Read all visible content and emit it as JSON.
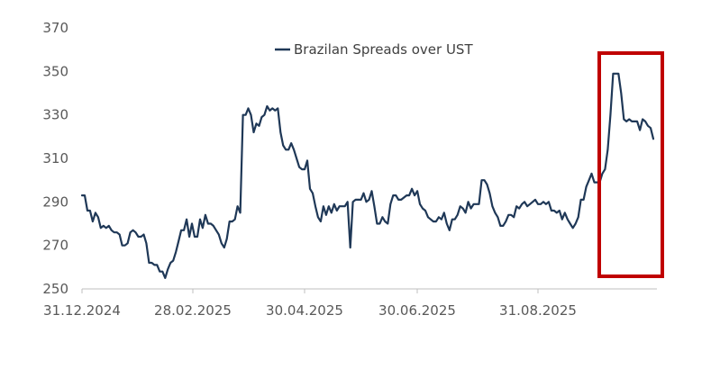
{
  "chart_data": {
    "type": "line",
    "title": "",
    "xlabel": "",
    "ylabel": "",
    "ylim": [
      250,
      370
    ],
    "yticks": [
      250,
      270,
      290,
      310,
      330,
      350,
      370
    ],
    "xtick_labels": [
      "31.12.2024",
      "28.02.2025",
      "30.04.2025",
      "30.06.2025",
      "31.08.2025"
    ],
    "legend": {
      "position": "top-center",
      "entries": [
        "Brazilan Spreads over UST"
      ]
    },
    "line_color": "#1f3857",
    "highlight_color": "#c00000",
    "highlight_label": "highlighted recent period",
    "series": [
      {
        "name": "Brazilan Spreads over UST",
        "values": [
          293,
          293,
          286,
          286,
          281,
          285,
          283,
          278,
          279,
          278,
          279,
          277,
          276,
          276,
          275,
          270,
          270,
          271,
          276,
          277,
          276,
          274,
          274,
          275,
          271,
          262,
          262,
          261,
          261,
          258,
          258,
          255,
          259,
          262,
          263,
          267,
          272,
          277,
          277,
          282,
          274,
          280,
          274,
          274,
          282,
          278,
          284,
          280,
          280,
          279,
          277,
          275,
          271,
          269,
          273,
          281,
          281,
          282,
          288,
          285,
          330,
          330,
          333,
          330,
          322,
          326,
          325,
          329,
          330,
          334,
          332,
          333,
          332,
          333,
          322,
          316,
          314,
          314,
          317,
          314,
          310,
          306,
          305,
          305,
          309,
          296,
          294,
          288,
          283,
          281,
          288,
          284,
          288,
          285,
          289,
          286,
          288,
          288,
          288,
          290,
          269,
          290,
          291,
          291,
          291,
          294,
          290,
          291,
          295,
          288,
          280,
          280,
          283,
          281,
          280,
          289,
          293,
          293,
          291,
          291,
          292,
          293,
          293,
          296,
          293,
          295,
          289,
          287,
          286,
          283,
          282,
          281,
          281,
          283,
          282,
          285,
          280,
          277,
          282,
          282,
          284,
          288,
          287,
          285,
          290,
          287,
          289,
          289,
          289,
          300,
          300,
          298,
          294,
          288,
          285,
          283,
          279,
          279,
          281,
          284,
          284,
          283,
          288,
          287,
          289,
          290,
          288,
          289,
          290,
          291,
          289,
          289,
          290,
          289,
          290,
          286,
          286,
          285,
          286,
          282,
          285,
          282,
          280,
          278,
          280,
          283,
          291,
          291,
          297,
          300,
          303,
          299,
          299,
          299,
          303,
          305,
          314,
          330,
          349,
          349,
          349,
          340,
          328,
          327,
          328,
          327,
          327,
          327,
          323,
          328,
          327,
          325,
          324,
          319
        ]
      }
    ],
    "highlight_start_index": 186
  }
}
